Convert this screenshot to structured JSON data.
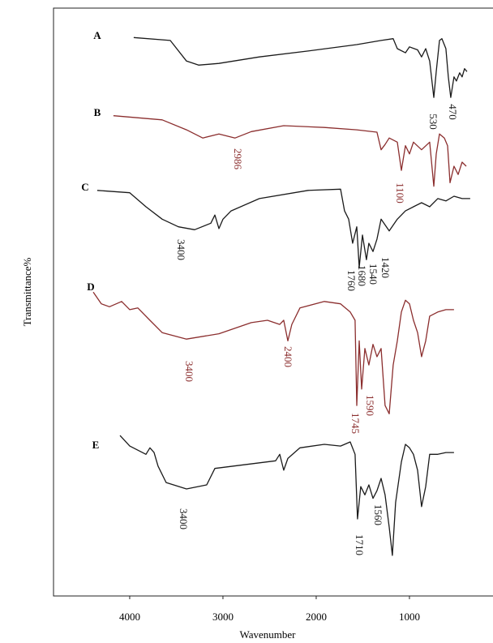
{
  "chart_data": {
    "type": "line",
    "x_label": "Wavenumber",
    "y_label": "Transmittance%",
    "xlim": [
      4817,
      104
    ],
    "ylim": [
      0,
      100
    ],
    "xticks": [
      4000,
      3000,
      2000,
      1000
    ],
    "series": [
      {
        "name": "A",
        "color": "#1a1a1a",
        "labels": [
          "530",
          "470"
        ],
        "x": [
          3957,
          3565,
          3391,
          3261,
          3043,
          2609,
          2087,
          1565,
          1304,
          1174,
          1130,
          1043,
          1000,
          913,
          870,
          826,
          783,
          739,
          713,
          678,
          652,
          609,
          583,
          557,
          522,
          496,
          461,
          435,
          409,
          383
        ],
        "values": [
          95.0,
          94.5,
          91.0,
          90.3,
          90.6,
          91.7,
          92.7,
          93.8,
          94.5,
          94.8,
          93.1,
          92.4,
          93.4,
          92.9,
          91.7,
          93.1,
          91.0,
          84.8,
          89.2,
          94.5,
          94.8,
          93.1,
          88.3,
          84.8,
          88.3,
          87.6,
          89.0,
          88.3,
          89.7,
          89.2
        ]
      },
      {
        "name": "B",
        "color": "#8b2e2e",
        "labels": [
          "2986",
          "1100"
        ],
        "x": [
          4174,
          3652,
          3391,
          3217,
          3043,
          2870,
          2696,
          2348,
          1913,
          1565,
          1348,
          1304,
          1261,
          1217,
          1130,
          1087,
          1043,
          1000,
          957,
          870,
          783,
          739,
          713,
          678,
          626,
          591,
          565,
          522,
          478,
          435,
          391
        ],
        "values": [
          81.7,
          81.0,
          79.3,
          77.9,
          78.6,
          77.9,
          79.0,
          80.0,
          79.7,
          79.3,
          78.9,
          75.9,
          76.8,
          77.9,
          77.2,
          72.4,
          76.6,
          75.2,
          77.2,
          75.9,
          77.2,
          69.7,
          75.2,
          78.6,
          77.9,
          76.6,
          70.3,
          73.1,
          71.7,
          73.8,
          73.1
        ]
      },
      {
        "name": "C",
        "color": "#1a1a1a",
        "labels": [
          "3400",
          "1760",
          "1680",
          "1540",
          "1420"
        ],
        "x": [
          4348,
          4000,
          3826,
          3652,
          3478,
          3304,
          3130,
          3087,
          3043,
          3000,
          2913,
          2609,
          2087,
          1739,
          1696,
          1652,
          1609,
          1565,
          1539,
          1504,
          1461,
          1435,
          1391,
          1348,
          1304,
          1217,
          1130,
          1043,
          957,
          870,
          783,
          696,
          609,
          522,
          435,
          348
        ],
        "values": [
          69.0,
          68.6,
          66.2,
          64.1,
          62.8,
          62.3,
          63.4,
          64.8,
          62.5,
          64.1,
          65.5,
          67.6,
          69.0,
          69.2,
          65.5,
          64.1,
          60.0,
          62.8,
          55.9,
          61.4,
          57.2,
          60.0,
          58.6,
          60.7,
          64.1,
          62.1,
          64.1,
          65.5,
          66.2,
          66.9,
          66.2,
          67.6,
          67.2,
          68.0,
          67.6,
          67.6
        ]
      },
      {
        "name": "D",
        "color": "#8b2e2e",
        "labels": [
          "3400",
          "2400",
          "1745",
          "1590"
        ],
        "x": [
          4391,
          4304,
          4217,
          4087,
          4000,
          3913,
          3783,
          3652,
          3391,
          3043,
          2696,
          2522,
          2391,
          2348,
          2304,
          2261,
          2174,
          1913,
          1739,
          1635,
          1583,
          1565,
          1539,
          1513,
          1478,
          1435,
          1391,
          1348,
          1304,
          1261,
          1217,
          1174,
          1130,
          1087,
          1043,
          1000,
          957,
          913,
          870,
          826,
          783,
          696,
          609,
          522
        ],
        "values": [
          51.7,
          49.7,
          49.2,
          50.1,
          48.7,
          49.0,
          46.9,
          44.8,
          43.7,
          44.6,
          46.5,
          46.9,
          46.2,
          46.9,
          43.4,
          46.2,
          49.0,
          50.1,
          49.7,
          48.3,
          46.9,
          32.4,
          43.4,
          35.2,
          42.1,
          39.3,
          42.8,
          40.7,
          42.1,
          32.4,
          31.0,
          39.3,
          43.4,
          48.3,
          50.3,
          49.7,
          46.9,
          44.8,
          40.7,
          43.4,
          47.6,
          48.3,
          48.7,
          48.7
        ]
      },
      {
        "name": "E",
        "color": "#1a1a1a",
        "labels": [
          "3400",
          "1710",
          "1560"
        ],
        "x": [
          4104,
          4000,
          3913,
          3826,
          3783,
          3739,
          3696,
          3609,
          3391,
          3174,
          3087,
          2783,
          2435,
          2391,
          2348,
          2304,
          2174,
          1913,
          1739,
          1635,
          1583,
          1557,
          1522,
          1478,
          1435,
          1391,
          1348,
          1304,
          1261,
          1217,
          1183,
          1148,
          1087,
          1043,
          1000,
          957,
          913,
          870,
          826,
          783,
          696,
          609,
          522
        ],
        "values": [
          27.3,
          25.5,
          24.8,
          24.1,
          25.2,
          24.4,
          22.1,
          19.3,
          18.2,
          18.9,
          21.7,
          22.3,
          23.0,
          24.1,
          21.4,
          23.4,
          25.2,
          25.8,
          25.5,
          26.2,
          24.1,
          13.1,
          18.6,
          17.2,
          18.9,
          16.6,
          17.9,
          20.0,
          17.2,
          11.7,
          6.9,
          15.9,
          22.8,
          25.8,
          25.2,
          24.1,
          21.4,
          15.2,
          18.6,
          24.1,
          24.1,
          24.4,
          24.4
        ]
      }
    ]
  }
}
